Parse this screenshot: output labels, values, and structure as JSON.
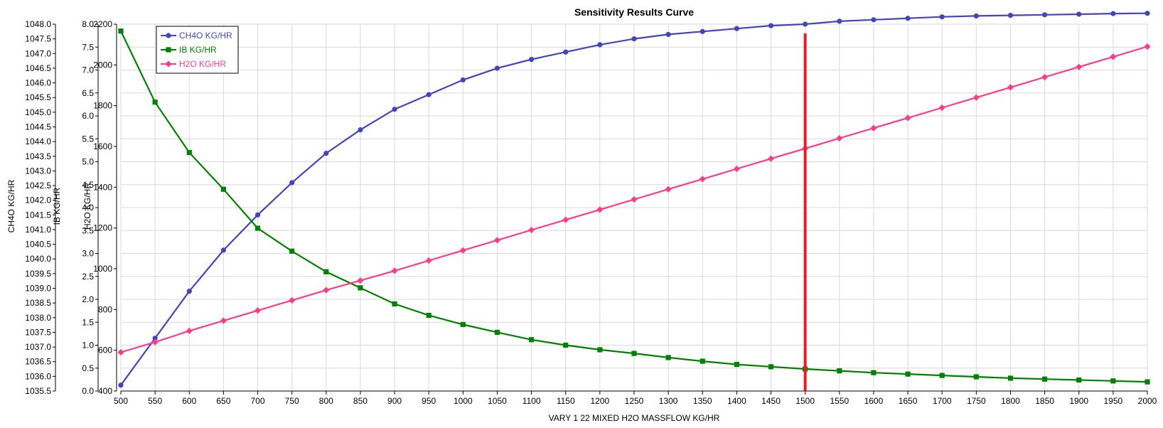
{
  "chart_data": {
    "type": "line",
    "title": "Sensitivity Results Curve",
    "xlabel": "VARY   1 22 MIXED H2O MASSFLOW KG/HR",
    "x": [
      500,
      550,
      600,
      650,
      700,
      750,
      800,
      850,
      900,
      950,
      1000,
      1050,
      1100,
      1150,
      1200,
      1250,
      1300,
      1350,
      1400,
      1450,
      1500,
      1550,
      1600,
      1650,
      1700,
      1750,
      1800,
      1850,
      1900,
      1950,
      2000
    ],
    "xlim": [
      500,
      2000
    ],
    "x_ticks": [
      "500",
      "550",
      "600",
      "650",
      "700",
      "750",
      "800",
      "850",
      "900",
      "950",
      "1000",
      "1050",
      "1100",
      "1150",
      "1200",
      "1250",
      "1300",
      "1350",
      "1400",
      "1450",
      "1500",
      "1550",
      "1600",
      "1650",
      "1700",
      "1750",
      "1800",
      "1850",
      "1900",
      "1950",
      "2000"
    ],
    "grid": true,
    "legend_position": "top-left",
    "vertical_marker_x": 1500,
    "vertical_marker_color": "#ed1c24",
    "axes": [
      {
        "label": "CH4O KG/HR",
        "ylim": [
          1035.5,
          1048.0
        ],
        "ticks": [
          "1035.5",
          "1036.0",
          "1036.5",
          "1037.0",
          "1037.5",
          "1038.0",
          "1038.5",
          "1039.0",
          "1039.5",
          "1040.0",
          "1040.5",
          "1041.0",
          "1041.5",
          "1042.0",
          "1042.5",
          "1043.0",
          "1043.5",
          "1044.0",
          "1044.5",
          "1045.0",
          "1045.5",
          "1046.0",
          "1046.5",
          "1047.0",
          "1047.5",
          "1048.0"
        ]
      },
      {
        "label": "IB KG/HR",
        "ylim": [
          0.0,
          8.0
        ],
        "ticks": [
          "0.0",
          "0.5",
          "1.0",
          "1.5",
          "2.0",
          "2.5",
          "3.0",
          "3.5",
          "4.0",
          "4.5",
          "5.0",
          "5.5",
          "6.0",
          "6.5",
          "7.0",
          "7.5",
          "8.0"
        ]
      },
      {
        "label": "H2O KG/HR",
        "ylim": [
          400,
          2200
        ],
        "ticks": [
          "400",
          "600",
          "800",
          "1000",
          "1200",
          "1400",
          "1600",
          "1800",
          "2000",
          "2200"
        ]
      }
    ],
    "series": [
      {
        "name": "CH4O KG/HR",
        "axis": 0,
        "color": "#4444bb",
        "marker": "circle",
        "values": [
          1035.7,
          1037.3,
          1038.9,
          1040.3,
          1041.5,
          1042.6,
          1043.6,
          1044.4,
          1045.1,
          1045.6,
          1046.1,
          1046.5,
          1046.8,
          1047.05,
          1047.3,
          1047.5,
          1047.65,
          1047.75,
          1047.85,
          1047.95,
          1048.0,
          1048.1,
          1048.15,
          1048.2,
          1048.25,
          1048.28,
          1048.3,
          1048.32,
          1048.34,
          1048.36,
          1048.37
        ]
      },
      {
        "name": "IB KG/HR",
        "axis": 1,
        "color": "#008000",
        "marker": "square",
        "values": [
          7.85,
          6.3,
          5.2,
          4.4,
          3.55,
          3.05,
          2.6,
          2.25,
          1.9,
          1.65,
          1.45,
          1.28,
          1.12,
          1.0,
          0.9,
          0.82,
          0.73,
          0.65,
          0.58,
          0.53,
          0.48,
          0.44,
          0.4,
          0.37,
          0.34,
          0.31,
          0.28,
          0.26,
          0.24,
          0.22,
          0.2
        ]
      },
      {
        "name": "H2O KG/HR",
        "axis": 2,
        "color": "#ff3b8a",
        "marker": "diamond",
        "values": [
          590,
          640,
          695,
          745,
          795,
          845,
          895,
          942,
          990,
          1040,
          1090,
          1140,
          1190,
          1240,
          1290,
          1340,
          1390,
          1440,
          1490,
          1540,
          1590,
          1640,
          1690,
          1740,
          1790,
          1840,
          1890,
          1940,
          1990,
          2040,
          2090
        ]
      }
    ]
  }
}
